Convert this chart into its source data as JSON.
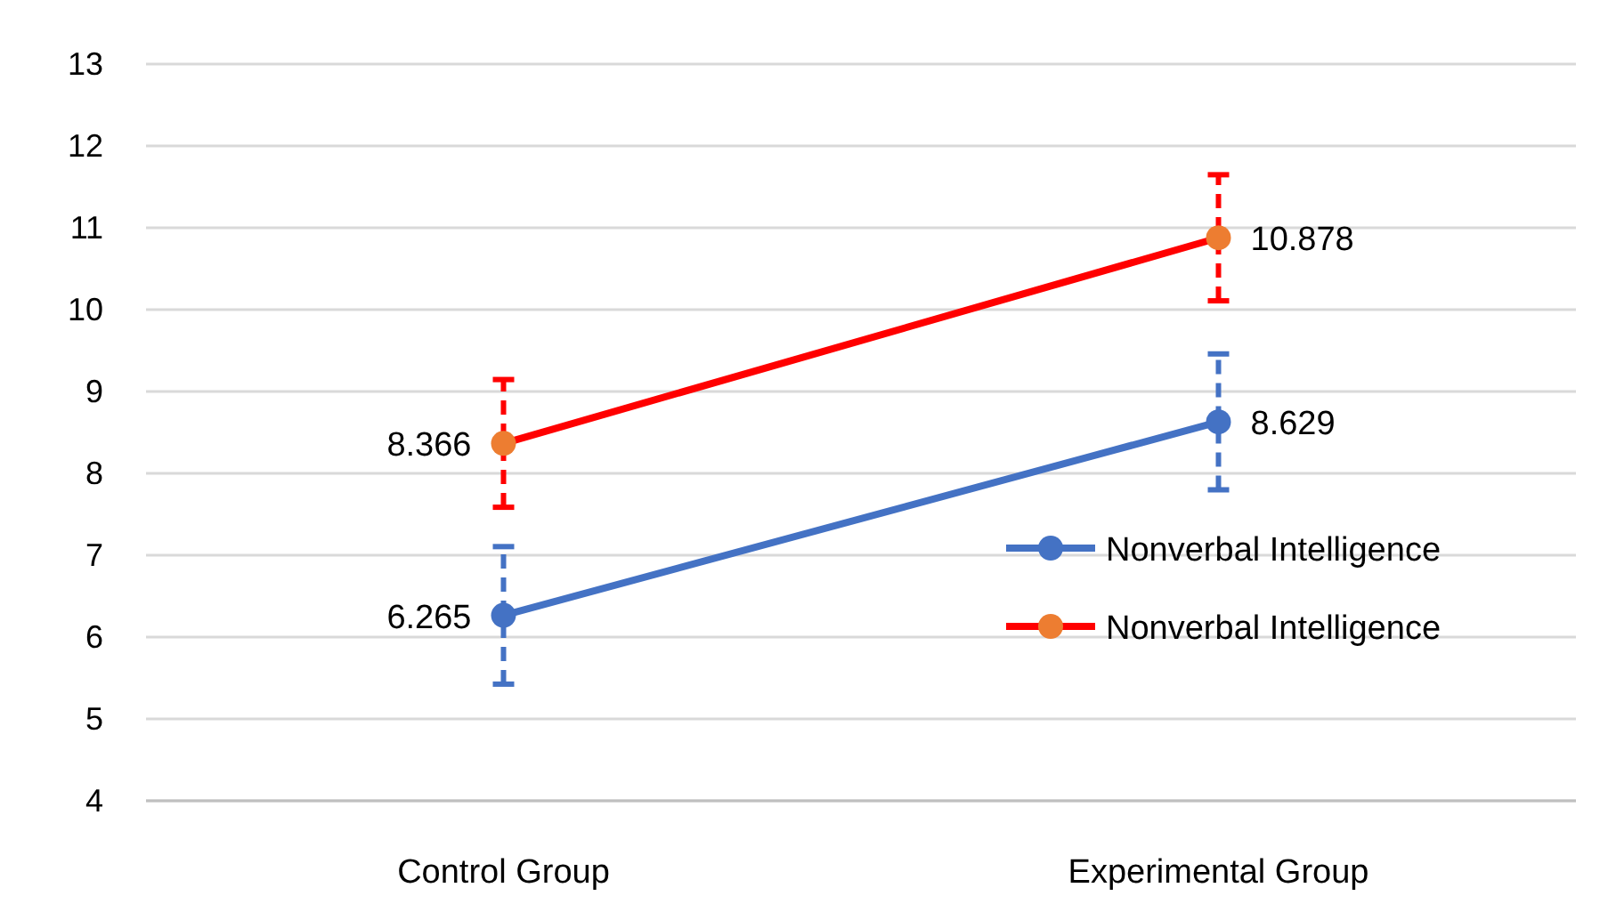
{
  "chart_data": {
    "type": "line",
    "categories": [
      "Control Group",
      "Experimental Group"
    ],
    "series": [
      {
        "name": "Nonverbal Intelligence",
        "color": "#4472c4",
        "colors": [
          "#4472c4",
          "#4472c4"
        ],
        "values": [
          6.265,
          8.629
        ],
        "errors": [
          0.84,
          0.83
        ]
      },
      {
        "name": "Nonverbal Intelligence",
        "color": "#ff0000",
        "colors": [
          "#ed7d31",
          "#ed7d31"
        ],
        "values": [
          8.366,
          10.878
        ],
        "errors": [
          0.78,
          0.77
        ]
      }
    ],
    "ylim": [
      4,
      13
    ],
    "yticks": [
      4,
      5,
      6,
      7,
      8,
      9,
      10,
      11,
      12,
      13
    ],
    "grid": "y",
    "legend": "right",
    "marker": "circle",
    "line_style": "solid",
    "data_labels": true
  }
}
